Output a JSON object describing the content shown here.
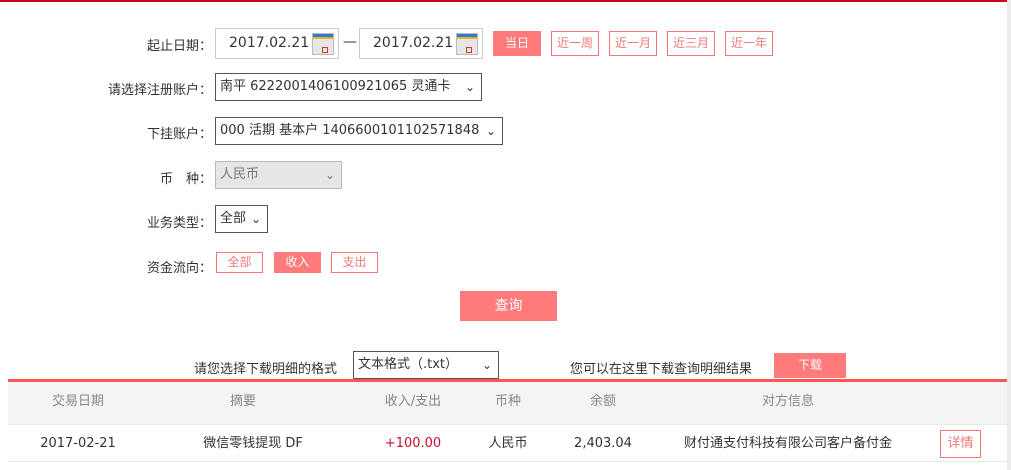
{
  "form": {
    "date_label": "起止日期：",
    "start_date": "2017.02.21",
    "dash": "—",
    "end_date": "2017.02.21",
    "quick_ranges": [
      {
        "label": "当日",
        "active": true
      },
      {
        "label": "近一周",
        "active": false
      },
      {
        "label": "近一月",
        "active": false
      },
      {
        "label": "近三月",
        "active": false
      },
      {
        "label": "近一年",
        "active": false
      }
    ],
    "reg_account_label": "请选择注册账户：",
    "reg_account": "南平 6222001406100921065 灵通卡",
    "sub_account_label": "下挂账户：",
    "sub_account": "000 活期 基本户 1406600101102571848",
    "currency_label": "币　种：",
    "currency": "人民币",
    "biz_type_label": "业务类型：",
    "biz_type": "全部",
    "flow_label": "资金流向：",
    "flows": [
      {
        "label": "全部",
        "active": false
      },
      {
        "label": "收入",
        "active": true
      },
      {
        "label": "支出",
        "active": false
      }
    ],
    "query_label": "查询"
  },
  "download": {
    "format_label": "请您选择下载明细的格式",
    "format": "文本格式（.txt）",
    "hint": "您可以在这里下载查询明细结果",
    "button": "下载"
  },
  "table": {
    "headers": [
      "交易日期",
      "摘要",
      "收入/支出",
      "币种",
      "余额",
      "对方信息"
    ],
    "rows": [
      {
        "date": "2017-02-21",
        "summary": "微信零钱提现 DF",
        "amount": "+100.00",
        "currency": "人民币",
        "balance": "2,403.04",
        "counterparty": "财付通支付科技有限公司客户备付金",
        "action": "详情"
      }
    ]
  },
  "colors": {
    "accent": "#ff7b7b",
    "top_line": "#d0021b",
    "amount_income": "#c8102e"
  }
}
